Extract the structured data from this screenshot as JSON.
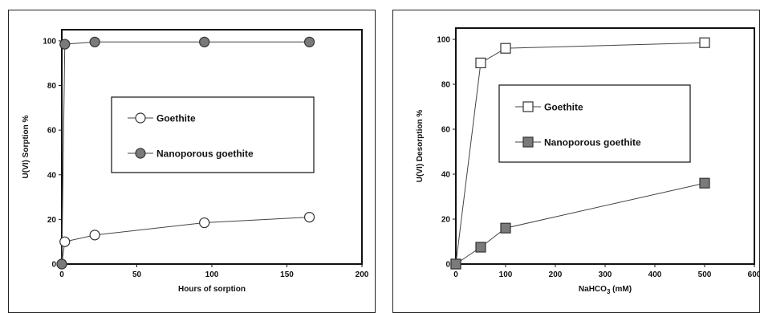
{
  "chart_data": [
    {
      "type": "scatter",
      "xlabel": "Hours of sorption",
      "ylabel": "U(VI) Sorption %",
      "xlim": [
        0,
        200
      ],
      "ylim": [
        0,
        105
      ],
      "xticks": [
        "0",
        "50",
        "100",
        "150",
        "200"
      ],
      "yticks": [
        "0",
        "20",
        "40",
        "60",
        "80",
        "100"
      ],
      "legend_position": "center",
      "series": [
        {
          "name": "Goethite",
          "marker": "open-circle",
          "color": "#ffffff",
          "x": [
            0,
            2,
            22,
            95,
            165
          ],
          "y": [
            0,
            10,
            13,
            18.5,
            21
          ]
        },
        {
          "name": "Nanoporous goethite",
          "marker": "filled-circle",
          "color": "#7a7a7a",
          "x": [
            0,
            2,
            22,
            95,
            165
          ],
          "y": [
            0,
            98.5,
            99.5,
            99.5,
            99.5
          ]
        }
      ]
    },
    {
      "type": "scatter",
      "xlabel_main": "NaHCO",
      "xlabel_sub": "3",
      "xlabel_rest": " (mM)",
      "ylabel": "U(VI) Desorption %",
      "xlim": [
        0,
        600
      ],
      "ylim": [
        0,
        105
      ],
      "xticks": [
        "0",
        "100",
        "200",
        "300",
        "400",
        "500",
        "600"
      ],
      "yticks": [
        "0",
        "20",
        "40",
        "60",
        "80",
        "100"
      ],
      "legend_position": "center",
      "series": [
        {
          "name": "Goethite",
          "marker": "open-square",
          "color": "#ffffff",
          "x": [
            0,
            50,
            100,
            500
          ],
          "y": [
            0,
            89.5,
            96,
            98.5
          ]
        },
        {
          "name": "Nanoporous goethite",
          "marker": "filled-square",
          "color": "#7a7a7a",
          "x": [
            0,
            50,
            100,
            500
          ],
          "y": [
            0,
            7.5,
            16,
            36
          ]
        }
      ]
    }
  ]
}
